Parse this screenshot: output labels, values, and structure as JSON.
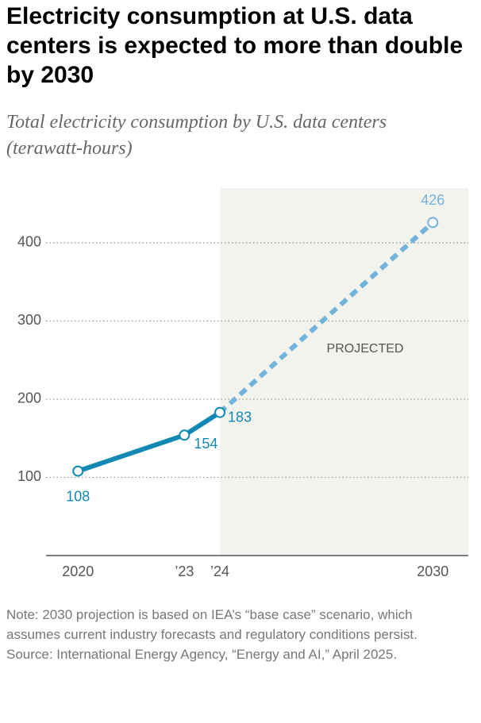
{
  "chart_data": {
    "type": "line",
    "title": "Electricity consumption at U.S. data centers is expected to more than double by 2030",
    "subtitle": "Total electricity consumption by U.S. data centers (terawatt-hours)",
    "x": [
      2020,
      2023,
      2024,
      2030
    ],
    "values": [
      108,
      154,
      183,
      426
    ],
    "color": "#1189b4",
    "projected": {
      "label": "PROJECTED",
      "from": 2024,
      "color": "#72b3dc",
      "shade": "#f3f3ee"
    },
    "xlim": [
      2019.1,
      2031
    ],
    "xticks": [
      2020,
      {
        "value": 2023,
        "label": "’23"
      },
      {
        "value": 2024,
        "label": "’24"
      },
      2030
    ],
    "ylim": [
      0,
      470
    ],
    "yticks": [
      100,
      200,
      300,
      400
    ],
    "grid": true,
    "note": "Note: 2030 projection is based on IEA’s “base case” scenario, which assumes current industry forecasts and regulatory conditions persist.",
    "source": "Source: International Energy Agency, “Energy and AI,” April 2025."
  }
}
